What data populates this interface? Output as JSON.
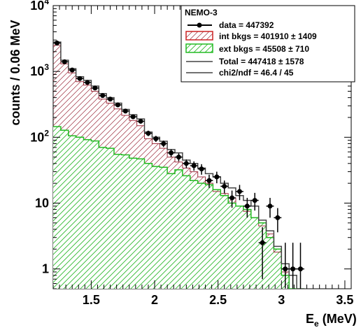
{
  "chart_data": {
    "type": "histogram",
    "title": "NEMO-3",
    "xlabel": "E",
    "xlabel_sub": "e",
    "xlabel_unit": "(MeV)",
    "ylabel": "counts / 0.06 MeV",
    "xlim": [
      1.2,
      3.55
    ],
    "ylim": [
      0.5,
      10000
    ],
    "yscale": "log",
    "x_ticks": [
      1.5,
      2,
      2.5,
      3,
      3.5
    ],
    "x_tick_labels": [
      "1.5",
      "2",
      "2.5",
      "3",
      "3.5"
    ],
    "y_ticks": [
      1,
      10,
      100,
      1000,
      10000
    ],
    "y_tick_labels": [
      "1",
      "10",
      "10²",
      "10³",
      "10⁴"
    ],
    "bin_edges": [
      1.2,
      1.26,
      1.32,
      1.38,
      1.44,
      1.5,
      1.56,
      1.62,
      1.68,
      1.74,
      1.8,
      1.86,
      1.92,
      1.98,
      2.04,
      2.1,
      2.16,
      2.22,
      2.28,
      2.34,
      2.4,
      2.46,
      2.52,
      2.58,
      2.64,
      2.7,
      2.76,
      2.82,
      2.88,
      2.94,
      3.0,
      3.06,
      3.12,
      3.18
    ],
    "series": [
      {
        "name": "data = 447392",
        "kind": "points",
        "x": [
          1.23,
          1.29,
          1.35,
          1.41,
          1.47,
          1.53,
          1.59,
          1.65,
          1.71,
          1.77,
          1.83,
          1.89,
          1.95,
          2.01,
          2.07,
          2.13,
          2.19,
          2.25,
          2.31,
          2.37,
          2.43,
          2.49,
          2.55,
          2.61,
          2.67,
          2.73,
          2.79,
          2.85,
          2.91,
          2.97,
          3.03,
          3.09,
          3.15
        ],
        "y": [
          2700,
          1400,
          1050,
          780,
          680,
          560,
          430,
          380,
          310,
          250,
          205,
          175,
          115,
          95,
          80,
          58,
          50,
          40,
          37,
          33,
          22,
          25,
          18,
          12,
          15,
          9,
          11,
          2.5,
          9,
          6,
          1,
          1,
          1
        ],
        "yerr_low": [
          52,
          37,
          32,
          28,
          26,
          24,
          21,
          19,
          18,
          16,
          14,
          13,
          11,
          10,
          9,
          8,
          7,
          6,
          6,
          6,
          5,
          5,
          4,
          3.5,
          3.9,
          3,
          3.3,
          1.8,
          3,
          2.4,
          0.95,
          0.95,
          0.95
        ],
        "yerr_high": [
          52,
          37,
          32,
          28,
          26,
          24,
          21,
          19,
          18,
          16,
          14,
          13,
          11,
          10,
          9,
          8,
          7,
          6,
          6,
          6,
          5,
          5,
          4,
          3.5,
          3.9,
          3,
          3.3,
          1.8,
          3,
          2.4,
          1.5,
          1.5,
          1.5
        ],
        "color": "#000000"
      },
      {
        "name": "int bkgs = 401910 ± 1409",
        "kind": "hatched-histogram",
        "values": [
          2500,
          1300,
          950,
          700,
          620,
          500,
          380,
          330,
          270,
          215,
          180,
          150,
          95,
          80,
          68,
          50,
          42,
          34,
          30,
          25,
          20,
          15,
          14,
          12,
          9,
          7.5,
          6,
          4.5,
          3.4,
          1.8,
          0.9,
          0.5,
          0.5
        ],
        "color": "#cc2222"
      },
      {
        "name": "ext bkgs = 45508 ± 710",
        "kind": "hatched-histogram",
        "values": [
          145,
          128,
          105,
          100,
          92,
          88,
          70,
          68,
          55,
          54,
          48,
          47,
          40,
          36,
          35,
          28,
          32,
          26,
          22,
          20,
          19,
          16,
          13,
          10,
          9,
          8,
          6,
          5,
          3,
          2,
          0.8,
          0.5,
          0.5
        ],
        "color": "#22bb22"
      },
      {
        "name": "Total = 447418 ± 1578",
        "kind": "step",
        "values": [
          2800,
          1480,
          1100,
          830,
          730,
          600,
          460,
          400,
          330,
          265,
          220,
          190,
          120,
          100,
          87,
          65,
          58,
          45,
          40,
          34,
          28,
          25,
          20,
          17,
          13,
          11,
          9,
          5.5,
          3.8,
          2.2,
          1.2,
          0.8,
          0.5
        ],
        "color": "#444444"
      }
    ],
    "legend": {
      "title": "NEMO-3",
      "position": "top-right",
      "entries": [
        {
          "label": "data = 447392",
          "style": "marker"
        },
        {
          "label": "int bkgs = 401910 ± 1409",
          "style": "hatch-red"
        },
        {
          "label": "ext bkgs = 45508 ± 710",
          "style": "hatch-green"
        },
        {
          "label": "Total = 447418 ± 1578",
          "style": "line"
        },
        {
          "label": "chi2/ndf = 46.4 / 45",
          "style": "line"
        }
      ]
    }
  }
}
